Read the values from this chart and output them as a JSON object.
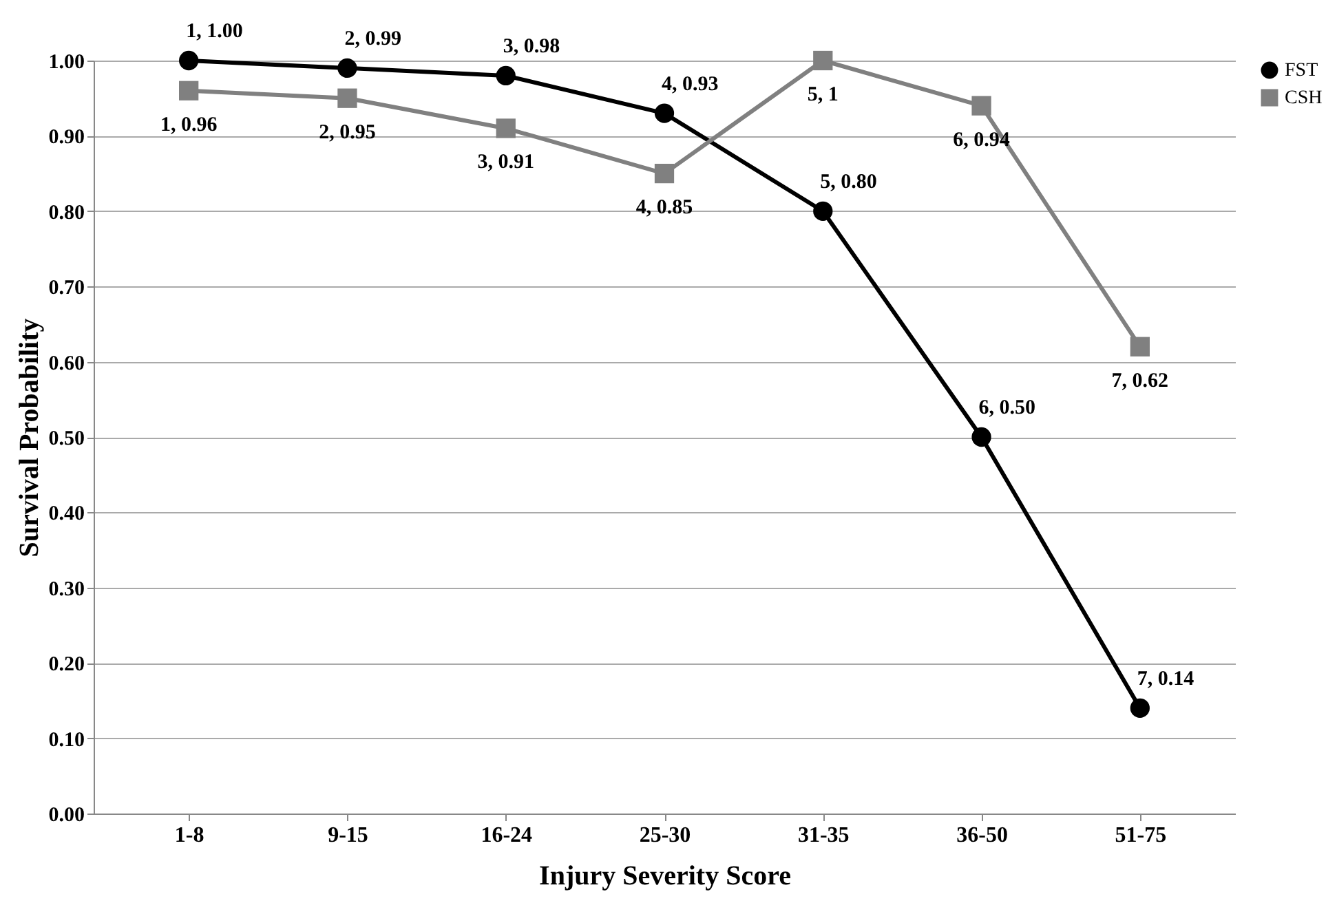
{
  "chart_data": {
    "type": "line",
    "xlabel": "Injury Severity Score",
    "ylabel": "Survival Probability",
    "categories": [
      "1-8",
      "9-15",
      "16-24",
      "25-30",
      "31-35",
      "36-50",
      "51-75"
    ],
    "series": [
      {
        "name": "FST",
        "color": "#000000",
        "marker": "circle",
        "values": [
          1.0,
          0.99,
          0.98,
          0.93,
          0.8,
          0.5,
          0.14
        ],
        "value_labels": [
          "1, 1.00",
          "2, 0.99",
          "3, 0.98",
          "4, 0.93",
          "5, 0.80",
          "6, 0.50",
          "7, 0.14"
        ]
      },
      {
        "name": "CSH",
        "color": "#808080",
        "marker": "square",
        "values": [
          0.96,
          0.95,
          0.91,
          0.85,
          1,
          0.94,
          0.62
        ],
        "value_labels": [
          "1, 0.96",
          "2, 0.95",
          "3, 0.91",
          "4, 0.85",
          "5, 1",
          "6, 0.94",
          "7, 0.62"
        ]
      }
    ],
    "ylim": [
      0,
      1
    ],
    "yticks": [
      {
        "value": 0,
        "label": "0.00"
      },
      {
        "value": 0.1,
        "label": "0.10"
      },
      {
        "value": 0.2,
        "label": "0.20"
      },
      {
        "value": 0.3,
        "label": "0.30"
      },
      {
        "value": 0.4,
        "label": "0.40"
      },
      {
        "value": 0.5,
        "label": "0.50"
      },
      {
        "value": 0.6,
        "label": "0.60"
      },
      {
        "value": 0.7,
        "label": "0.70"
      },
      {
        "value": 0.8,
        "label": "0.80"
      },
      {
        "value": 0.9,
        "label": "0.90"
      },
      {
        "value": 1,
        "label": "1.00"
      }
    ],
    "grid": "y",
    "legend": "right",
    "line_style": "solid"
  }
}
